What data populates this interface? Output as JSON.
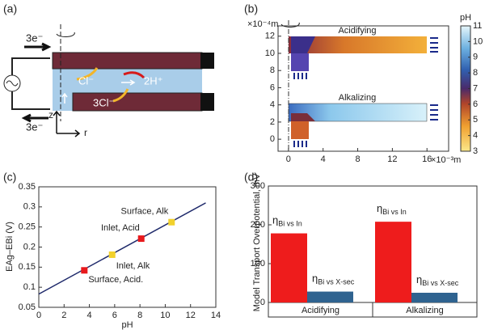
{
  "panel_labels": [
    "(a)",
    "(b)",
    "(c)",
    "(d)"
  ],
  "diagram": {
    "electron_top": "3e⁻",
    "electron_bottom": "3e⁻",
    "ion_in": "Cl⁻",
    "product": "2H⁺",
    "ion_bottom": "3Cl⁻",
    "axis_z": "z",
    "axis_r": "r"
  },
  "chart_data": [
    {
      "type": "field",
      "x_label": "×10⁻³m",
      "y_label": "×10⁻⁴m",
      "colorbar_label": "pH",
      "annotations": [
        "Acidifying",
        "Alkalizing"
      ],
      "xlim": [
        -1.2,
        18.5
      ],
      "xticks": [
        0,
        4,
        8,
        12,
        16
      ],
      "ylim": [
        -1.4,
        13.2
      ],
      "yticks": [
        0,
        2,
        4,
        6,
        8,
        10,
        12
      ],
      "colorbar_lim": [
        3,
        11
      ],
      "colorbar_ticks": [
        3,
        4,
        5,
        6,
        7,
        8,
        9,
        10,
        11
      ]
    },
    {
      "type": "line",
      "x_label": "pH",
      "y_label": "EAg–EBi (V)",
      "xlim": [
        0,
        14
      ],
      "xticks": [
        0,
        2,
        4,
        6,
        8,
        10,
        12,
        14
      ],
      "ylim": [
        0.05,
        0.35
      ],
      "yticks": [
        0.05,
        0.1,
        0.15,
        0.2,
        0.25,
        0.3,
        0.35
      ],
      "series": [
        {
          "color": "#1f2a6b",
          "x": [
            0,
            13.2
          ],
          "values": [
            0.083,
            0.31
          ]
        }
      ],
      "points": {
        "x": [
          3.6,
          5.8,
          8.1,
          10.5
        ],
        "values": [
          0.142,
          0.181,
          0.221,
          0.262
        ],
        "colors": [
          "#e8191c",
          "#f2d12c",
          "#e8191c",
          "#f2d12c"
        ],
        "labels": [
          "Surface, Acid.",
          "Inlet, Alk",
          "Inlet, Acid",
          "Surface, Alk"
        ]
      }
    },
    {
      "type": "bar",
      "y_label": "Model Transport Overpotential, mV",
      "categories": [
        "Acidifying",
        "Alkalizing"
      ],
      "ylim": [
        0,
        300
      ],
      "yticks": [
        0,
        100,
        200,
        300
      ],
      "series": [
        {
          "name": "ηBi vs In",
          "color": "#ee1c1c",
          "values": [
            178,
            208
          ]
        },
        {
          "name": "ηBi vs X-sec",
          "color": "#2f6390",
          "values": [
            28,
            25
          ]
        }
      ]
    }
  ]
}
